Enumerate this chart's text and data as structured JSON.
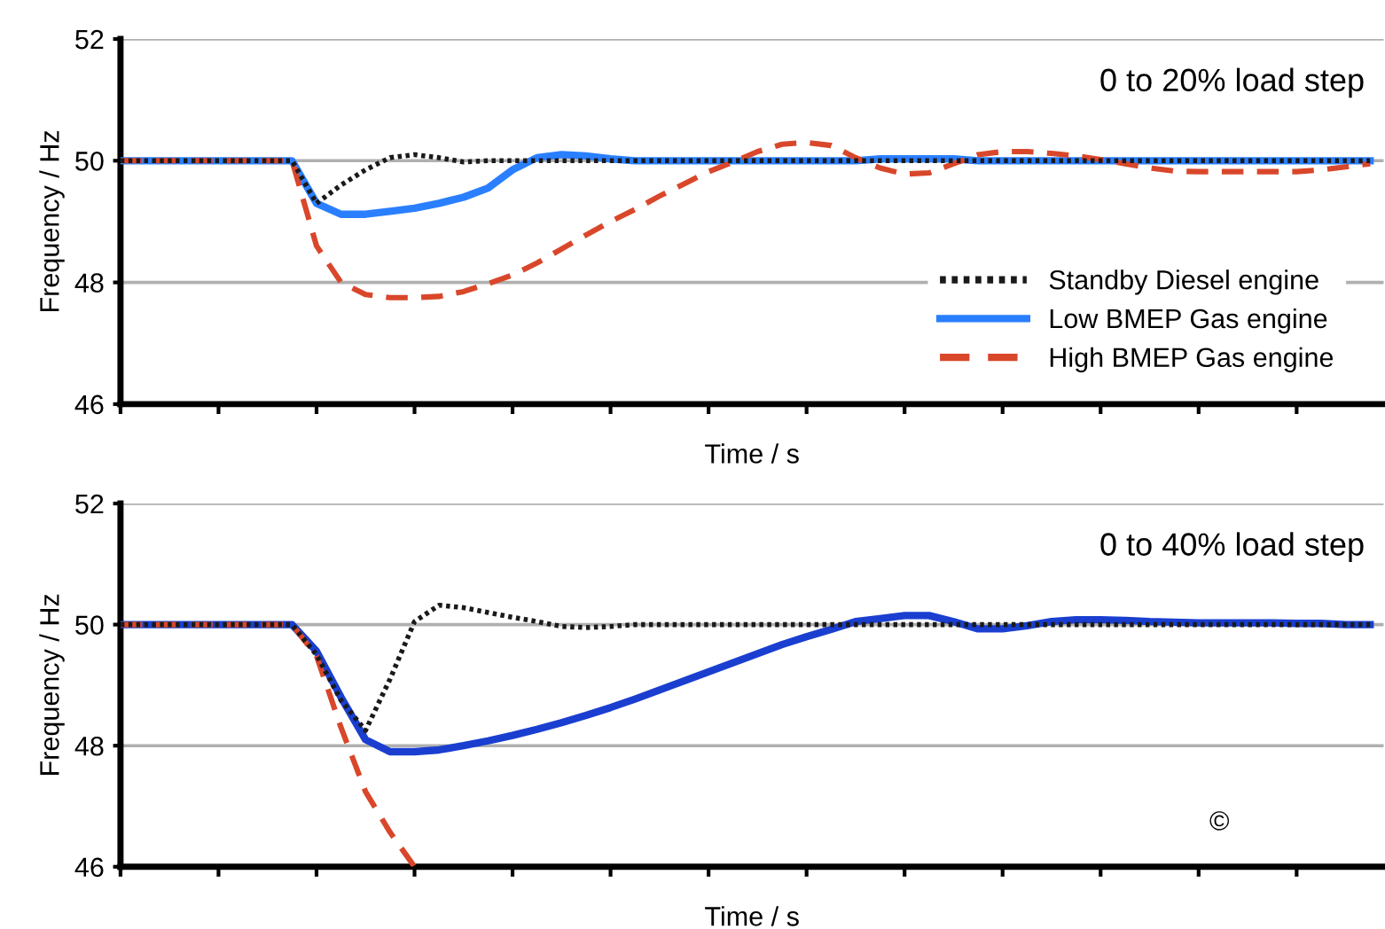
{
  "chart_data": [
    {
      "type": "line",
      "xlabel": "Time / s",
      "ylabel": "Frequency / Hz",
      "annotations": [
        "0 to 20% load step"
      ],
      "categories": [
        null,
        null,
        null,
        null,
        null,
        null,
        null,
        null,
        null,
        null,
        null,
        null,
        null,
        null,
        null,
        null,
        null,
        null,
        null,
        null,
        null,
        null,
        null,
        null,
        null,
        null,
        null,
        null,
        null,
        null,
        null,
        null,
        null,
        null,
        null,
        null,
        null,
        null,
        null,
        null,
        null,
        null,
        null,
        null,
        null,
        null,
        null,
        null,
        null,
        null,
        null,
        null
      ],
      "ylim": [
        46,
        52
      ],
      "yticks": [
        46,
        48,
        50,
        52
      ],
      "grid": "y",
      "legend": "lower right",
      "tick_labels": "y",
      "series": [
        {
          "name": "Standby Diesel engine",
          "color": "#1a1a1a",
          "line_style": "dotted",
          "values": [
            50,
            50,
            50,
            50,
            50,
            50,
            50,
            50,
            49.3,
            49.6,
            49.85,
            50.05,
            50.1,
            50.05,
            49.98,
            50,
            50,
            50,
            50,
            50,
            50,
            50,
            50,
            50,
            50,
            50,
            50,
            50,
            50,
            50,
            50,
            50,
            50,
            50,
            50,
            50,
            50,
            50,
            50,
            50,
            50,
            50,
            50,
            50,
            50,
            50,
            50,
            50,
            50,
            50,
            50,
            50
          ]
        },
        {
          "name": "Low BMEP Gas engine",
          "color": "#2a7fff",
          "line_style": "solid",
          "values": [
            50,
            50,
            50,
            50,
            50,
            50,
            50,
            50,
            49.3,
            49.12,
            49.12,
            49.17,
            49.22,
            49.3,
            49.4,
            49.55,
            49.85,
            50.05,
            50.1,
            50.08,
            50.03,
            50,
            50,
            50,
            50,
            50,
            50,
            50,
            50,
            50,
            50,
            50.03,
            50.03,
            50.03,
            50.03,
            50,
            50,
            50,
            50,
            50,
            50,
            50,
            50,
            50,
            50,
            50,
            50,
            50,
            50,
            50,
            50,
            50
          ]
        },
        {
          "name": "High BMEP Gas engine",
          "color": "#d9472b",
          "line_style": "dashed",
          "values": [
            50,
            50,
            50,
            50,
            50,
            50,
            50,
            50,
            48.6,
            48.0,
            47.8,
            47.75,
            47.75,
            47.77,
            47.85,
            47.98,
            48.12,
            48.32,
            48.55,
            48.78,
            49.0,
            49.2,
            49.42,
            49.62,
            49.82,
            49.98,
            50.15,
            50.27,
            50.3,
            50.25,
            50.05,
            49.88,
            49.78,
            49.8,
            49.95,
            50.1,
            50.15,
            50.15,
            50.12,
            50.08,
            50.02,
            49.95,
            49.88,
            49.83,
            49.82,
            49.82,
            49.82,
            49.82,
            49.82,
            49.85,
            49.9,
            49.95
          ]
        }
      ]
    },
    {
      "type": "line",
      "xlabel": "Time / s",
      "ylabel": "Frequency / Hz",
      "annotations": [
        "0 to 40% load step",
        "©"
      ],
      "categories": [
        null,
        null,
        null,
        null,
        null,
        null,
        null,
        null,
        null,
        null,
        null,
        null,
        null,
        null,
        null,
        null,
        null,
        null,
        null,
        null,
        null,
        null,
        null,
        null,
        null,
        null,
        null,
        null,
        null,
        null,
        null,
        null,
        null,
        null,
        null,
        null,
        null,
        null,
        null,
        null,
        null,
        null,
        null,
        null,
        null,
        null,
        null,
        null,
        null,
        null,
        null,
        null
      ],
      "ylim": [
        46,
        52
      ],
      "yticks": [
        46,
        48,
        50,
        52
      ],
      "grid": "y",
      "tick_labels": "y",
      "series": [
        {
          "color": "#1a1a1a",
          "line_style": "dotted",
          "values": [
            50,
            50,
            50,
            50,
            50,
            50,
            50,
            50,
            49.5,
            48.75,
            48.25,
            49.1,
            50.05,
            50.32,
            50.28,
            50.2,
            50.12,
            50.05,
            49.97,
            49.95,
            49.97,
            50,
            50,
            50,
            50,
            50,
            50,
            50,
            50,
            50,
            50,
            50,
            50,
            50,
            50,
            50,
            50,
            50,
            50,
            50,
            50,
            50,
            50,
            50,
            50,
            50,
            50,
            50,
            50,
            50,
            50,
            50
          ]
        },
        {
          "color": "#1a3fd0",
          "line_style": "solid",
          "values": [
            50,
            50,
            50,
            50,
            50,
            50,
            50,
            50,
            49.56,
            48.8,
            48.1,
            47.9,
            47.9,
            47.93,
            48.0,
            48.08,
            48.17,
            48.27,
            48.38,
            48.5,
            48.63,
            48.77,
            48.92,
            49.07,
            49.22,
            49.37,
            49.52,
            49.67,
            49.8,
            49.92,
            50.05,
            50.1,
            50.15,
            50.15,
            50.05,
            49.93,
            49.93,
            49.98,
            50.05,
            50.08,
            50.08,
            50.07,
            50.05,
            50.04,
            50.03,
            50.03,
            50.03,
            50.03,
            50.02,
            50.02,
            50,
            50
          ]
        },
        {
          "color": "#d9472b",
          "line_style": "dashed",
          "values": [
            50,
            50,
            50,
            50,
            50,
            50,
            50,
            50,
            49.48,
            48.3,
            47.24,
            46.57,
            46,
            null,
            null,
            null,
            null,
            null,
            null,
            null,
            null,
            null,
            null,
            null,
            null,
            null,
            null,
            null,
            null,
            null,
            null,
            null,
            null,
            null,
            null,
            null,
            null,
            null,
            null,
            null,
            null,
            null,
            null,
            null,
            null,
            null,
            null,
            null,
            null,
            null,
            null,
            null
          ]
        }
      ]
    }
  ]
}
